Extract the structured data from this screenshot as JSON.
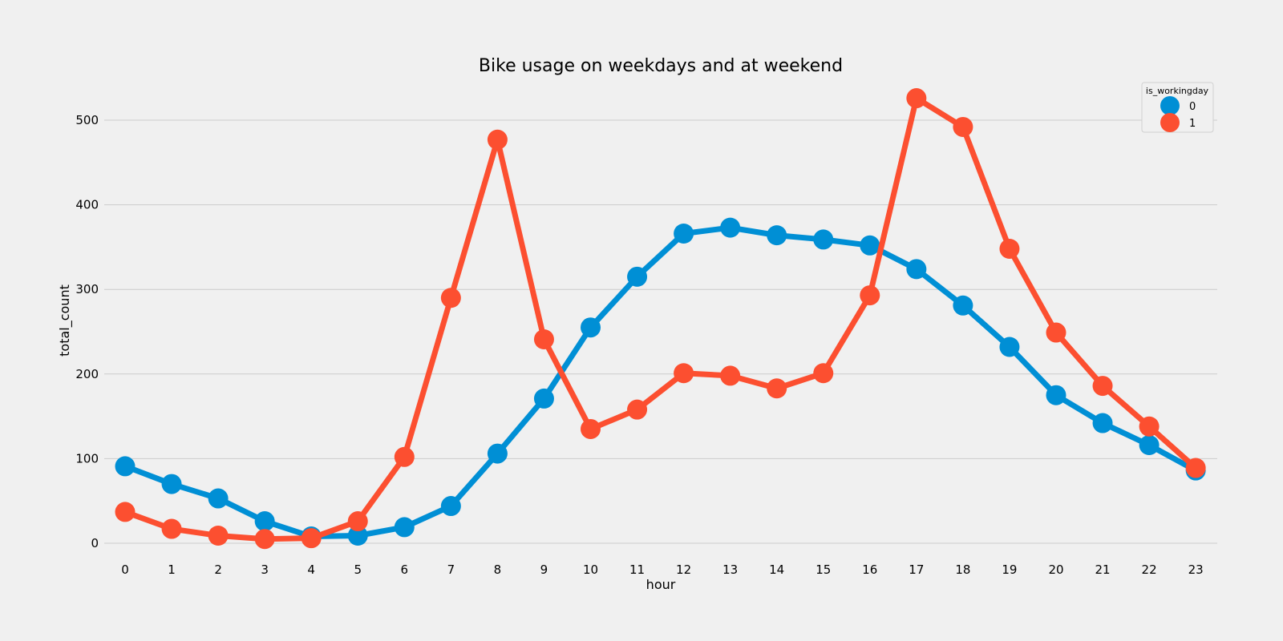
{
  "chart_data": {
    "type": "line",
    "title": "Bike usage on weekdays and at weekend",
    "xlabel": "hour",
    "ylabel": "total_count",
    "x": [
      0,
      1,
      2,
      3,
      4,
      5,
      6,
      7,
      8,
      9,
      10,
      11,
      12,
      13,
      14,
      15,
      16,
      17,
      18,
      19,
      20,
      21,
      22,
      23
    ],
    "y_ticks": [
      0,
      100,
      200,
      300,
      400,
      500
    ],
    "ylim": [
      -12,
      550
    ],
    "grid": "horizontal",
    "legend_title": "is_workingday",
    "legend_position": "top-right",
    "series": [
      {
        "name": "0",
        "color": "#008fd5",
        "values": [
          91,
          70,
          53,
          26,
          8,
          9,
          19,
          44,
          106,
          171,
          255,
          315,
          366,
          373,
          364,
          359,
          352,
          324,
          281,
          232,
          175,
          142,
          116,
          86
        ]
      },
      {
        "name": "1",
        "color": "#fc4f30",
        "values": [
          37,
          17,
          9,
          5,
          6,
          26,
          102,
          290,
          477,
          241,
          135,
          158,
          201,
          198,
          183,
          201,
          293,
          526,
          492,
          348,
          249,
          186,
          138,
          89
        ]
      }
    ]
  }
}
